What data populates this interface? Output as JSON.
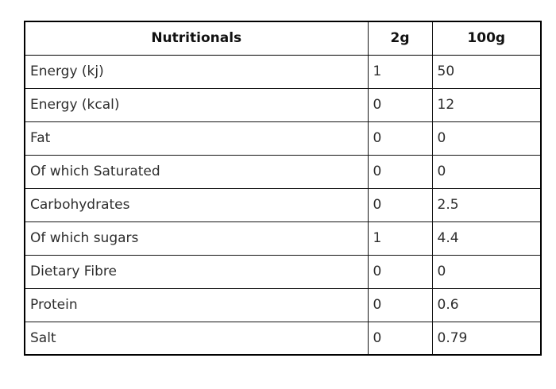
{
  "table": {
    "columns": [
      "Nutritionals",
      "2g",
      "100g"
    ],
    "rows": [
      {
        "label": "Energy (kj)",
        "per2g": "1",
        "per100g": "50"
      },
      {
        "label": "Energy (kcal)",
        "per2g": "0",
        "per100g": "12"
      },
      {
        "label": "Fat",
        "per2g": "0",
        "per100g": "0"
      },
      {
        "label": "Of which Saturated",
        "per2g": "0",
        "per100g": "0"
      },
      {
        "label": "Carbohydrates",
        "per2g": "0",
        "per100g": "2.5"
      },
      {
        "label": "Of which sugars",
        "per2g": "1",
        "per100g": "4.4"
      },
      {
        "label": "Dietary Fibre",
        "per2g": "0",
        "per100g": "0"
      },
      {
        "label": "Protein",
        "per2g": "0",
        "per100g": "0.6"
      },
      {
        "label": "Salt",
        "per2g": "0",
        "per100g": "0.79"
      }
    ]
  }
}
